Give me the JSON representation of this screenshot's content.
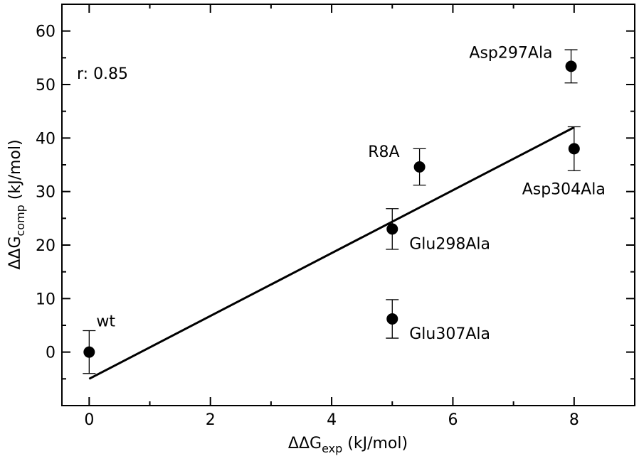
{
  "chart_data": {
    "type": "scatter",
    "xlabel": {
      "main": "ΔΔG",
      "sub": "exp",
      "unit": " (kJ/mol)"
    },
    "ylabel": {
      "main": "ΔΔG",
      "sub": "comp",
      "unit": " (kJ/mol)"
    },
    "xlim": [
      -0.45,
      9.0
    ],
    "ylim": [
      -10,
      65
    ],
    "x_major_ticks": [
      0,
      2,
      4,
      6,
      8
    ],
    "x_minor_ticks": [
      1,
      3,
      5,
      7
    ],
    "y_major_ticks": [
      0,
      10,
      20,
      30,
      40,
      50,
      60
    ],
    "y_minor_ticks": [
      -5,
      5,
      15,
      25,
      35,
      45,
      55
    ],
    "annotation": "r: 0.85",
    "points": [
      {
        "label": "wt",
        "x": 0,
        "y": 0,
        "err": 4.0
      },
      {
        "label": "Glu307Ala",
        "x": 5.0,
        "y": 6.2,
        "err": 3.6
      },
      {
        "label": "Glu298Ala",
        "x": 5.0,
        "y": 23.0,
        "err": 3.8
      },
      {
        "label": "R8A",
        "x": 5.45,
        "y": 34.6,
        "err": 3.4
      },
      {
        "label": "Asp304Ala",
        "x": 8.0,
        "y": 38.0,
        "err": 4.1
      },
      {
        "label": "Asp297Ala",
        "x": 7.95,
        "y": 53.4,
        "err": 3.1
      }
    ],
    "fit_line": {
      "x": [
        0,
        8.0
      ],
      "y": [
        -5.0,
        42.0
      ]
    },
    "grid": false,
    "legend": "none"
  }
}
